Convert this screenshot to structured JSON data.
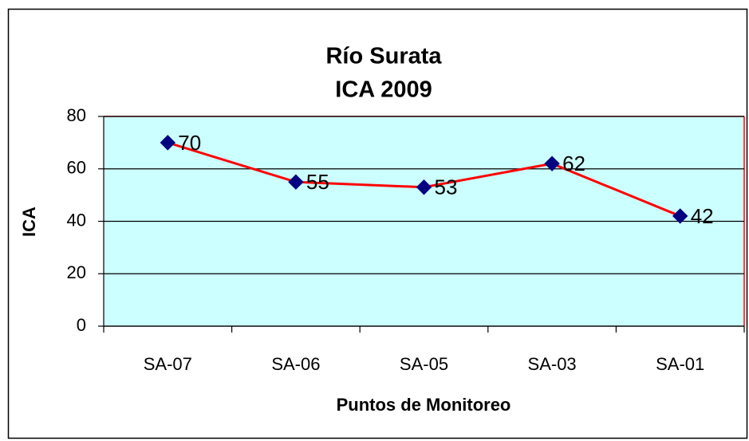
{
  "chart_data": {
    "type": "line",
    "title": "Río Surata",
    "subtitle": "ICA 2009",
    "x_label": "Puntos de Monitoreo",
    "y_label": "ICA",
    "categories": [
      "SA-07",
      "SA-06",
      "SA-05",
      "SA-03",
      "SA-01"
    ],
    "series": [
      {
        "name": "ICA",
        "color": "#ff0000",
        "marker_color": "#000080",
        "values": [
          70,
          55,
          53,
          62,
          42
        ]
      }
    ],
    "ylim": [
      0,
      80
    ],
    "yticks": [
      0,
      20,
      40,
      60,
      80
    ],
    "grid": true,
    "plot_background": "#ccffff"
  }
}
